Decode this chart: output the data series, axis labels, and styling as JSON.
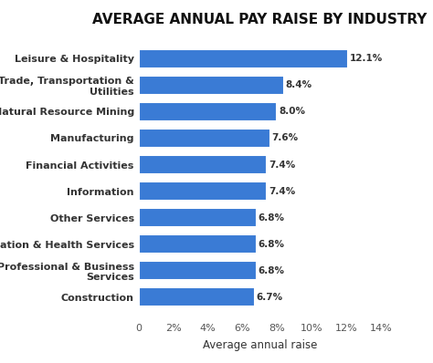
{
  "title": "AVERAGE ANNUAL PAY RAISE BY INDUSTRY",
  "categories": [
    "Construction",
    "Professional & Business\nServices",
    "Education & Health Services",
    "Other Services",
    "Information",
    "Financial Activities",
    "Manufacturing",
    "Natural Resource Mining",
    "Trade, Transportation &\nUtilities",
    "Leisure & Hospitality"
  ],
  "values": [
    6.7,
    6.8,
    6.8,
    6.8,
    7.4,
    7.4,
    7.6,
    8.0,
    8.4,
    12.1
  ],
  "labels": [
    "6.7%",
    "6.8%",
    "6.8%",
    "6.8%",
    "7.4%",
    "7.4%",
    "7.6%",
    "8.0%",
    "8.4%",
    "12.1%"
  ],
  "bar_color": "#3a7bd5",
  "xlabel": "Average annual raise",
  "xlim": [
    0,
    14
  ],
  "xticks": [
    0,
    2,
    4,
    6,
    8,
    10,
    12,
    14
  ],
  "xtick_labels": [
    "0",
    "2%",
    "4%",
    "6%",
    "8%",
    "10%",
    "12%",
    "14%"
  ],
  "background_color": "#ffffff",
  "title_fontsize": 11,
  "label_fontsize": 7.5,
  "tick_fontsize": 8,
  "xlabel_fontsize": 8.5
}
